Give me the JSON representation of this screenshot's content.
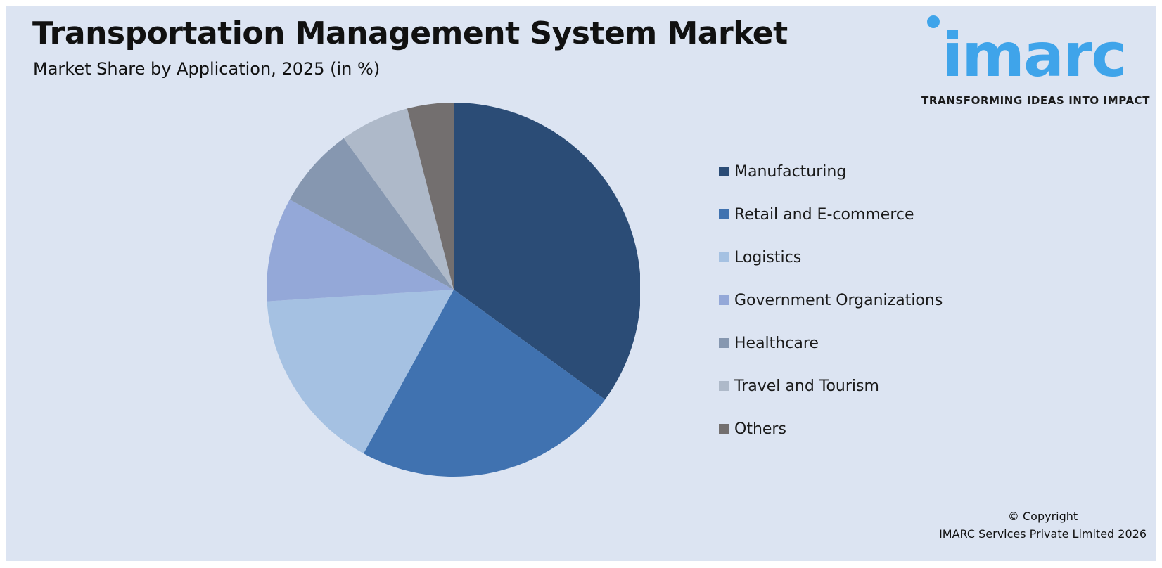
{
  "header": {
    "title": "Transportation Management System Market",
    "subtitle": "Market Share by Application, 2025 (in %)"
  },
  "logo": {
    "wordmark": "imarc",
    "tagline": "TRANSFORMING IDEAS INTO IMPACT",
    "color": "#3fa4ea"
  },
  "chart_data": {
    "type": "pie",
    "title": "Transportation Management System Market",
    "subtitle": "Market Share by Application, 2025 (in %)",
    "legend_position": "right",
    "slices": [
      {
        "label": "Manufacturing",
        "value": 35,
        "color": "#2b4c76"
      },
      {
        "label": "Retail and E-commerce",
        "value": 23,
        "color": "#4072b0"
      },
      {
        "label": "Logistics",
        "value": 16,
        "color": "#a5c1e2"
      },
      {
        "label": "Government Organizations",
        "value": 9,
        "color": "#94a8d8"
      },
      {
        "label": "Healthcare",
        "value": 7,
        "color": "#8697b0"
      },
      {
        "label": "Travel and Tourism",
        "value": 6,
        "color": "#aeb9c9"
      },
      {
        "label": "Others",
        "value": 4,
        "color": "#736f6f"
      }
    ]
  },
  "footer": {
    "copyright_line1": "© Copyright",
    "copyright_line2": "IMARC Services Private Limited 2026"
  }
}
